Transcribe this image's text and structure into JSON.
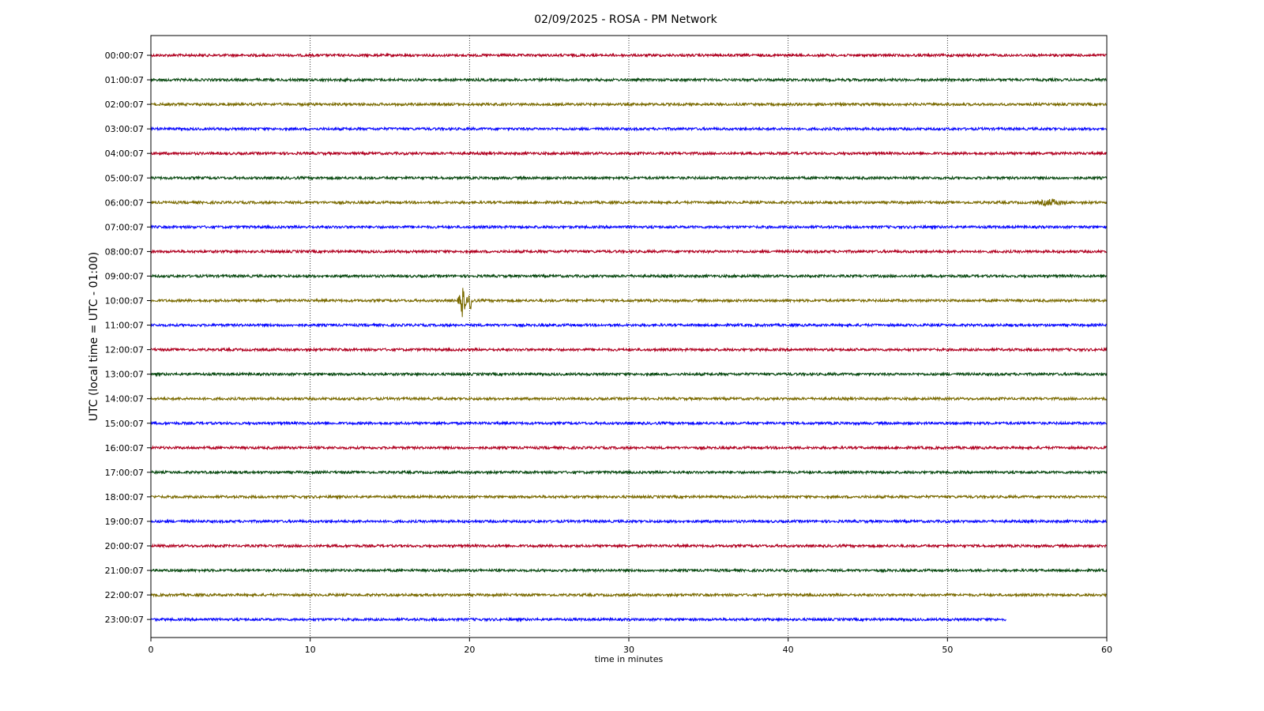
{
  "chart_data": {
    "type": "line",
    "title": "02/09/2025 - ROSA - PM Network",
    "xlabel": "time in minutes",
    "ylabel": "UTC (local time = UTC - 01:00)",
    "xlim": [
      0,
      60
    ],
    "x_ticks": [
      0,
      10,
      20,
      30,
      40,
      50,
      60
    ],
    "grid": "vertical dotted lines at x ticks",
    "colors": [
      "#b00020",
      "#0a4a12",
      "#7a6a00",
      "#0a0aff"
    ],
    "series": [
      {
        "name": "00:00:07",
        "x_end": 60
      },
      {
        "name": "01:00:07",
        "x_end": 60
      },
      {
        "name": "02:00:07",
        "x_end": 60
      },
      {
        "name": "03:00:07",
        "x_end": 60
      },
      {
        "name": "04:00:07",
        "x_end": 60
      },
      {
        "name": "05:00:07",
        "x_end": 60
      },
      {
        "name": "06:00:07",
        "x_end": 60,
        "events": [
          {
            "x": 56.5,
            "amplitude": "small"
          }
        ]
      },
      {
        "name": "07:00:07",
        "x_end": 60
      },
      {
        "name": "08:00:07",
        "x_end": 60
      },
      {
        "name": "09:00:07",
        "x_end": 60
      },
      {
        "name": "10:00:07",
        "x_end": 60,
        "events": [
          {
            "x": 19.5,
            "amplitude": "large"
          }
        ]
      },
      {
        "name": "11:00:07",
        "x_end": 60
      },
      {
        "name": "12:00:07",
        "x_end": 60
      },
      {
        "name": "13:00:07",
        "x_end": 60
      },
      {
        "name": "14:00:07",
        "x_end": 60
      },
      {
        "name": "15:00:07",
        "x_end": 60
      },
      {
        "name": "16:00:07",
        "x_end": 60
      },
      {
        "name": "17:00:07",
        "x_end": 60
      },
      {
        "name": "18:00:07",
        "x_end": 60
      },
      {
        "name": "19:00:07",
        "x_end": 60
      },
      {
        "name": "20:00:07",
        "x_end": 60
      },
      {
        "name": "21:00:07",
        "x_end": 60
      },
      {
        "name": "22:00:07",
        "x_end": 60
      },
      {
        "name": "23:00:07",
        "x_end": 53.7
      }
    ]
  }
}
